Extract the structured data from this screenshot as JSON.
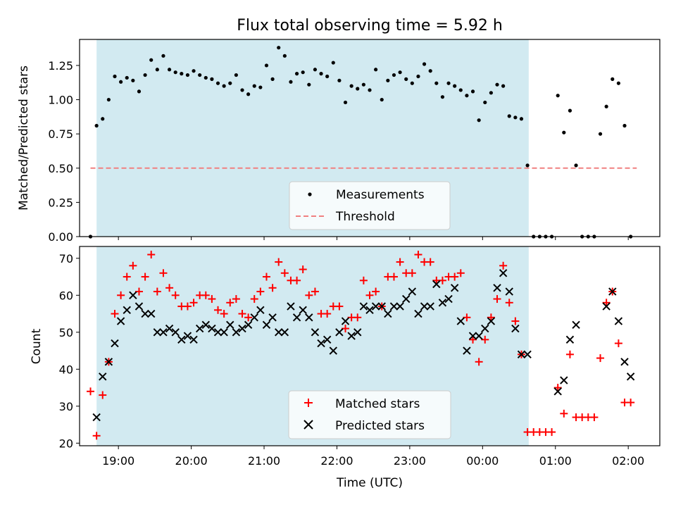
{
  "chart_data": [
    {
      "type": "scatter",
      "title": "Flux total observing time = 5.92 h",
      "xlabel": "",
      "ylabel": "Matched/Predicted stars",
      "ylim": [
        0,
        1.44
      ],
      "xlim": [
        "18:28",
        "02:26"
      ],
      "yticks": [
        "0.00",
        "0.25",
        "0.50",
        "0.75",
        "1.00",
        "1.25"
      ],
      "shaded_span": [
        "18:42",
        "00:38"
      ],
      "legend_position": "lower center",
      "series": [
        {
          "name": "Measurements",
          "color": "#000000",
          "marker": "dot",
          "x": [
            "18:37",
            "18:42",
            "18:47",
            "18:52",
            "18:57",
            "19:02",
            "19:07",
            "19:12",
            "19:17",
            "19:22",
            "19:27",
            "19:32",
            "19:37",
            "19:42",
            "19:47",
            "19:52",
            "19:57",
            "20:02",
            "20:07",
            "20:12",
            "20:17",
            "20:22",
            "20:27",
            "20:32",
            "20:37",
            "20:42",
            "20:47",
            "20:52",
            "20:57",
            "21:02",
            "21:07",
            "21:12",
            "21:17",
            "21:22",
            "21:27",
            "21:32",
            "21:37",
            "21:42",
            "21:47",
            "21:52",
            "21:57",
            "22:02",
            "22:07",
            "22:12",
            "22:17",
            "22:22",
            "22:27",
            "22:32",
            "22:37",
            "22:42",
            "22:47",
            "22:52",
            "22:57",
            "23:02",
            "23:07",
            "23:12",
            "23:17",
            "23:22",
            "23:27",
            "23:32",
            "23:37",
            "23:42",
            "23:47",
            "23:52",
            "23:57",
            "00:02",
            "00:07",
            "00:12",
            "00:17",
            "00:22",
            "00:27",
            "00:32",
            "00:37",
            "00:42",
            "00:47",
            "00:52",
            "00:57",
            "01:02",
            "01:07",
            "01:12",
            "01:17",
            "01:22",
            "01:27",
            "01:32",
            "01:37",
            "01:42",
            "01:47",
            "01:52",
            "01:57",
            "02:02"
          ],
          "y": [
            0.0,
            0.81,
            0.86,
            1.0,
            1.17,
            1.13,
            1.16,
            1.14,
            1.06,
            1.18,
            1.29,
            1.22,
            1.32,
            1.22,
            1.2,
            1.19,
            1.18,
            1.21,
            1.18,
            1.16,
            1.15,
            1.12,
            1.1,
            1.12,
            1.18,
            1.07,
            1.04,
            1.1,
            1.09,
            1.25,
            1.15,
            1.38,
            1.32,
            1.13,
            1.19,
            1.2,
            1.11,
            1.22,
            1.19,
            1.17,
            1.27,
            1.14,
            0.98,
            1.1,
            1.08,
            1.11,
            1.07,
            1.22,
            1.0,
            1.14,
            1.18,
            1.2,
            1.15,
            1.12,
            1.17,
            1.26,
            1.21,
            1.12,
            1.02,
            1.12,
            1.1,
            1.07,
            1.03,
            1.06,
            0.85,
            0.98,
            1.05,
            1.11,
            1.1,
            0.88,
            0.87,
            0.86,
            0.52,
            0.0,
            0.0,
            0.0,
            0.0,
            1.03,
            0.76,
            0.92,
            0.52,
            0.0,
            0.0,
            0.0,
            0.75,
            0.95,
            1.15,
            1.12,
            0.81,
            0.0
          ]
        },
        {
          "name": "Threshold",
          "color": "#f08080",
          "style": "dashed",
          "x": [
            "18:37",
            "02:07"
          ],
          "y": [
            0.5,
            0.5
          ]
        }
      ]
    },
    {
      "type": "scatter",
      "title": "",
      "xlabel": "Time (UTC)",
      "ylabel": "Count",
      "ylim": [
        19.3,
        73.2
      ],
      "xlim": [
        "18:28",
        "02:26"
      ],
      "xticks": [
        "19:00",
        "20:00",
        "21:00",
        "22:00",
        "23:00",
        "00:00",
        "01:00",
        "02:00"
      ],
      "yticks": [
        "20",
        "30",
        "40",
        "50",
        "60",
        "70"
      ],
      "shaded_span": [
        "18:42",
        "00:38"
      ],
      "legend_position": "lower center",
      "series": [
        {
          "name": "Matched stars",
          "color": "#ff0000",
          "marker": "plus",
          "x": [
            "18:37",
            "18:42",
            "18:47",
            "18:52",
            "18:57",
            "19:02",
            "19:07",
            "19:12",
            "19:17",
            "19:22",
            "19:27",
            "19:32",
            "19:37",
            "19:42",
            "19:47",
            "19:52",
            "19:57",
            "20:02",
            "20:07",
            "20:12",
            "20:17",
            "20:22",
            "20:27",
            "20:32",
            "20:37",
            "20:42",
            "20:47",
            "20:52",
            "20:57",
            "21:02",
            "21:07",
            "21:12",
            "21:17",
            "21:22",
            "21:27",
            "21:32",
            "21:37",
            "21:42",
            "21:47",
            "21:52",
            "21:57",
            "22:02",
            "22:07",
            "22:12",
            "22:17",
            "22:22",
            "22:27",
            "22:32",
            "22:37",
            "22:42",
            "22:47",
            "22:52",
            "22:57",
            "23:02",
            "23:07",
            "23:12",
            "23:17",
            "23:22",
            "23:27",
            "23:32",
            "23:37",
            "23:42",
            "23:47",
            "23:52",
            "23:57",
            "00:02",
            "00:07",
            "00:12",
            "00:17",
            "00:22",
            "00:27",
            "00:32",
            "00:37",
            "00:42",
            "00:47",
            "00:52",
            "00:57",
            "01:02",
            "01:07",
            "01:12",
            "01:17",
            "01:22",
            "01:27",
            "01:32",
            "01:37",
            "01:42",
            "01:47",
            "01:52",
            "01:57",
            "02:02"
          ],
          "y": [
            34,
            22,
            33,
            42,
            55,
            60,
            65,
            68,
            61,
            65,
            71,
            61,
            66,
            62,
            60,
            57,
            57,
            58,
            60,
            60,
            59,
            56,
            55,
            58,
            59,
            55,
            54,
            59,
            61,
            65,
            62,
            69,
            66,
            64,
            64,
            67,
            60,
            61,
            55,
            55,
            57,
            57,
            51,
            54,
            54,
            64,
            60,
            61,
            57,
            65,
            65,
            69,
            66,
            66,
            71,
            69,
            69,
            64,
            64,
            65,
            65,
            66,
            54,
            48,
            42,
            48,
            54,
            59,
            68,
            58,
            53,
            44,
            23,
            23,
            23,
            23,
            23,
            35,
            28,
            44,
            27,
            27,
            27,
            27,
            43,
            58,
            61,
            47,
            31,
            31
          ]
        },
        {
          "name": "Predicted stars",
          "color": "#000000",
          "marker": "x",
          "x": [
            "18:42",
            "18:47",
            "18:52",
            "18:57",
            "19:02",
            "19:07",
            "19:12",
            "19:17",
            "19:22",
            "19:27",
            "19:32",
            "19:37",
            "19:42",
            "19:47",
            "19:52",
            "19:57",
            "20:02",
            "20:07",
            "20:12",
            "20:17",
            "20:22",
            "20:27",
            "20:32",
            "20:37",
            "20:42",
            "20:47",
            "20:52",
            "20:57",
            "21:02",
            "21:07",
            "21:12",
            "21:17",
            "21:22",
            "21:27",
            "21:32",
            "21:37",
            "21:42",
            "21:47",
            "21:52",
            "21:57",
            "22:02",
            "22:07",
            "22:12",
            "22:17",
            "22:22",
            "22:27",
            "22:32",
            "22:37",
            "22:42",
            "22:47",
            "22:52",
            "22:57",
            "23:02",
            "23:07",
            "23:12",
            "23:17",
            "23:22",
            "23:27",
            "23:32",
            "23:37",
            "23:42",
            "23:47",
            "23:52",
            "23:57",
            "00:02",
            "00:07",
            "00:12",
            "00:17",
            "00:22",
            "00:27",
            "00:32",
            "00:37",
            "01:02",
            "01:07",
            "01:12",
            "01:17",
            "01:42",
            "01:47",
            "01:52",
            "01:57",
            "02:02"
          ],
          "y": [
            27,
            38,
            42,
            47,
            53,
            56,
            60,
            57,
            55,
            55,
            50,
            50,
            51,
            50,
            48,
            49,
            48,
            51,
            52,
            51,
            50,
            50,
            52,
            50,
            51,
            52,
            54,
            56,
            52,
            54,
            50,
            50,
            57,
            54,
            56,
            54,
            50,
            47,
            48,
            45,
            50,
            53,
            49,
            50,
            57,
            56,
            57,
            57,
            55,
            57,
            57,
            59,
            61,
            55,
            57,
            57,
            63,
            58,
            59,
            62,
            53,
            45,
            49,
            49,
            51,
            53,
            62,
            66,
            61,
            51,
            44,
            44,
            34,
            37,
            48,
            52,
            57,
            61,
            53,
            42,
            38
          ]
        }
      ]
    }
  ]
}
